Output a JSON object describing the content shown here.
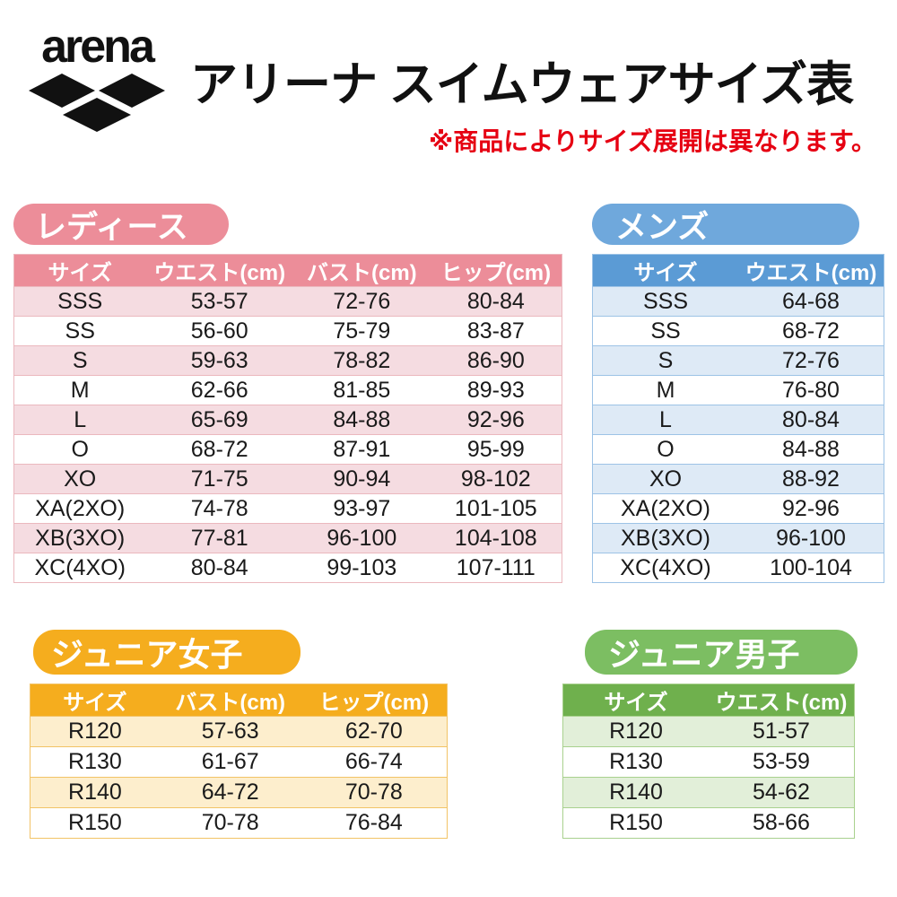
{
  "header": {
    "logo_text": "arena",
    "title": "アリーナ スイムウェアサイズ表",
    "note": "※商品によりサイズ展開は異なります。"
  },
  "colors": {
    "ladies": "#EC8D99",
    "ladies_light": "#F5DCE1",
    "ladies_border": "#EBB8BE",
    "mens": "#5B9BD5",
    "mens_badge": "#6FA8DC",
    "mens_light": "#DEEAF6",
    "mens_border": "#9DC3E6",
    "girls": "#F5AD1E",
    "girls_light": "#FDEECD",
    "girls_border": "#F2C366",
    "boys": "#6FB04D",
    "boys_badge": "#7CBE62",
    "boys_light": "#E2EFD9",
    "boys_border": "#A9D18E",
    "note_red": "#E60012"
  },
  "sections": {
    "ladies": {
      "badge": "レディース",
      "columns": [
        "サイズ",
        "ウエスト(cm)",
        "バスト(cm)",
        "ヒップ(cm)"
      ],
      "rows": [
        [
          "SSS",
          "53-57",
          "72-76",
          "80-84"
        ],
        [
          "SS",
          "56-60",
          "75-79",
          "83-87"
        ],
        [
          "S",
          "59-63",
          "78-82",
          "86-90"
        ],
        [
          "M",
          "62-66",
          "81-85",
          "89-93"
        ],
        [
          "L",
          "65-69",
          "84-88",
          "92-96"
        ],
        [
          "O",
          "68-72",
          "87-91",
          "95-99"
        ],
        [
          "XO",
          "71-75",
          "90-94",
          "98-102"
        ],
        [
          "XA(2XO)",
          "74-78",
          "93-97",
          "101-105"
        ],
        [
          "XB(3XO)",
          "77-81",
          "96-100",
          "104-108"
        ],
        [
          "XC(4XO)",
          "80-84",
          "99-103",
          "107-111"
        ]
      ]
    },
    "mens": {
      "badge": "メンズ",
      "columns": [
        "サイズ",
        "ウエスト(cm)"
      ],
      "rows": [
        [
          "SSS",
          "64-68"
        ],
        [
          "SS",
          "68-72"
        ],
        [
          "S",
          "72-76"
        ],
        [
          "M",
          "76-80"
        ],
        [
          "L",
          "80-84"
        ],
        [
          "O",
          "84-88"
        ],
        [
          "XO",
          "88-92"
        ],
        [
          "XA(2XO)",
          "92-96"
        ],
        [
          "XB(3XO)",
          "96-100"
        ],
        [
          "XC(4XO)",
          "100-104"
        ]
      ]
    },
    "junior_girls": {
      "badge": "ジュニア女子",
      "columns": [
        "サイズ",
        "バスト(cm)",
        "ヒップ(cm)"
      ],
      "rows": [
        [
          "R120",
          "57-63",
          "62-70"
        ],
        [
          "R130",
          "61-67",
          "66-74"
        ],
        [
          "R140",
          "64-72",
          "70-78"
        ],
        [
          "R150",
          "70-78",
          "76-84"
        ]
      ]
    },
    "junior_boys": {
      "badge": "ジュニア男子",
      "columns": [
        "サイズ",
        "ウエスト(cm)"
      ],
      "rows": [
        [
          "R120",
          "51-57"
        ],
        [
          "R130",
          "53-59"
        ],
        [
          "R140",
          "54-62"
        ],
        [
          "R150",
          "58-66"
        ]
      ]
    }
  }
}
